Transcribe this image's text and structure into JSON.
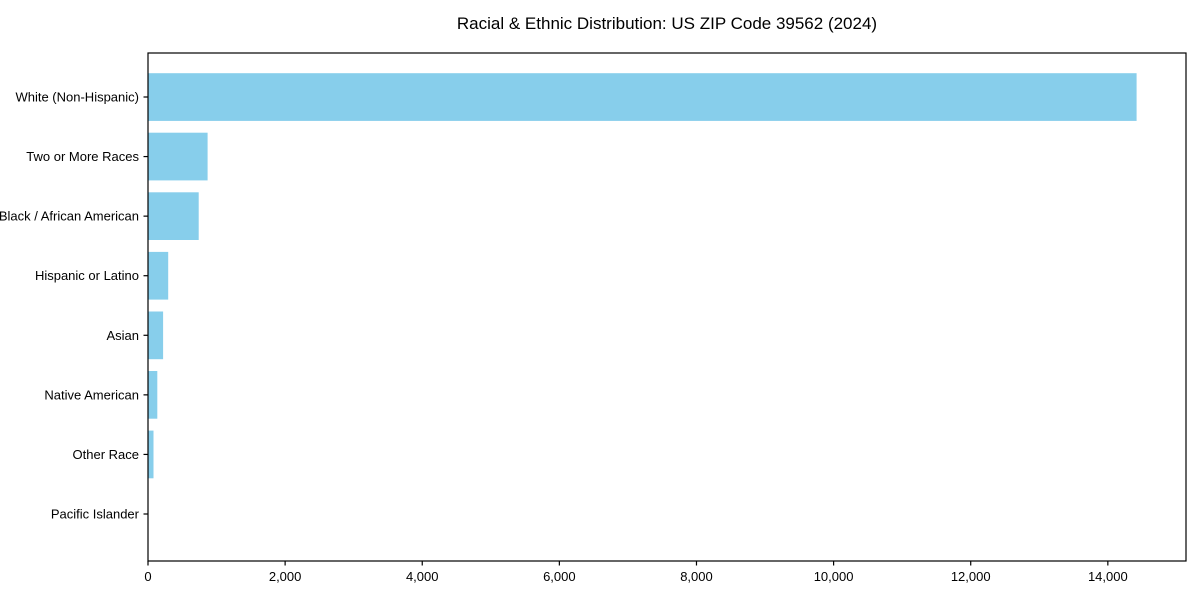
{
  "figure": {
    "background": "#ffffff"
  },
  "chart_data": {
    "type": "bar",
    "orientation": "horizontal",
    "title": "Racial & Ethnic Distribution: US ZIP Code 39562 (2024)",
    "categories": [
      "White (Non-Hispanic)",
      "Two or More Races",
      "Black / African American",
      "Hispanic or Latino",
      "Asian",
      "Native American",
      "Other Race",
      "Pacific Islander"
    ],
    "values": [
      14420,
      870,
      740,
      295,
      220,
      135,
      80,
      0
    ],
    "xlabel": "",
    "ylabel": "",
    "xlim": [
      0,
      15140
    ],
    "x_ticks": {
      "values": [
        0,
        2000,
        4000,
        6000,
        8000,
        10000,
        12000,
        14000
      ],
      "labels": [
        "0",
        "2,000",
        "4,000",
        "6,000",
        "8,000",
        "10,000",
        "12,000",
        "14,000"
      ]
    },
    "grid": false,
    "legend": "none",
    "bar_color": "#87CEEB",
    "frame_color": "#000000",
    "text_color": "#000000"
  }
}
